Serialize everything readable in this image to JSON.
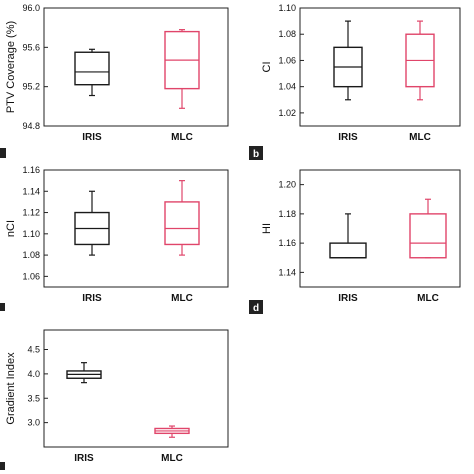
{
  "colors": {
    "iris": "#1a1a1a",
    "mlc": "#e0456a",
    "axis": "#222222",
    "label_box": "#222222",
    "label_text": "#ffffff"
  },
  "chart_data": [
    {
      "type": "box",
      "panel_label": "",
      "ylabel": "PTV Coverage (%)",
      "xlabel": "",
      "ylim": [
        94.8,
        96.0
      ],
      "yticks": [
        "94.8",
        "95.2",
        "95.6",
        "96.0"
      ],
      "ytick_values": [
        94.8,
        95.2,
        95.6,
        96.0
      ],
      "categories": [
        "IRIS",
        "MLC"
      ],
      "series": [
        {
          "name": "IRIS",
          "whisker_low": 95.11,
          "q1": 95.22,
          "median": 95.35,
          "q3": 95.55,
          "whisker_high": 95.58
        },
        {
          "name": "MLC",
          "whisker_low": 94.98,
          "q1": 95.18,
          "median": 95.47,
          "q3": 95.76,
          "whisker_high": 95.78
        }
      ]
    },
    {
      "type": "box",
      "panel_label": "b",
      "ylabel": "CI",
      "xlabel": "",
      "ylim": [
        1.01,
        1.1
      ],
      "yticks": [
        "1.02",
        "1.04",
        "1.06",
        "1.08",
        "1.10"
      ],
      "ytick_values": [
        1.02,
        1.04,
        1.06,
        1.08,
        1.1
      ],
      "categories": [
        "IRIS",
        "MLC"
      ],
      "series": [
        {
          "name": "IRIS",
          "whisker_low": 1.03,
          "q1": 1.04,
          "median": 1.055,
          "q3": 1.07,
          "whisker_high": 1.09
        },
        {
          "name": "MLC",
          "whisker_low": 1.03,
          "q1": 1.04,
          "median": 1.06,
          "q3": 1.08,
          "whisker_high": 1.09
        }
      ]
    },
    {
      "type": "box",
      "panel_label": "",
      "ylabel": "nCI",
      "xlabel": "",
      "ylim": [
        1.05,
        1.16
      ],
      "yticks": [
        "1.06",
        "1.08",
        "1.10",
        "1.12",
        "1.14",
        "1.16"
      ],
      "ytick_values": [
        1.06,
        1.08,
        1.1,
        1.12,
        1.14,
        1.16
      ],
      "categories": [
        "IRIS",
        "MLC"
      ],
      "series": [
        {
          "name": "IRIS",
          "whisker_low": 1.08,
          "q1": 1.09,
          "median": 1.105,
          "q3": 1.12,
          "whisker_high": 1.14
        },
        {
          "name": "MLC",
          "whisker_low": 1.08,
          "q1": 1.09,
          "median": 1.105,
          "q3": 1.13,
          "whisker_high": 1.15
        }
      ]
    },
    {
      "type": "box",
      "panel_label": "d",
      "ylabel": "HI",
      "xlabel": "",
      "ylim": [
        1.13,
        1.21
      ],
      "yticks": [
        "1.14",
        "1.16",
        "1.18",
        "1.20"
      ],
      "ytick_values": [
        1.14,
        1.16,
        1.18,
        1.2
      ],
      "categories": [
        "IRIS",
        "MLC"
      ],
      "series": [
        {
          "name": "IRIS",
          "whisker_low": 1.15,
          "q1": 1.15,
          "median": 1.15,
          "q3": 1.16,
          "whisker_high": 1.18
        },
        {
          "name": "MLC",
          "whisker_low": 1.15,
          "q1": 1.15,
          "median": 1.16,
          "q3": 1.18,
          "whisker_high": 1.19
        }
      ]
    },
    {
      "type": "box",
      "panel_label": "",
      "ylabel": "Gradient Index",
      "xlabel": "",
      "ylim": [
        2.5,
        4.9
      ],
      "yticks": [
        "3.0",
        "3.5",
        "4.0",
        "4.5"
      ],
      "ytick_values": [
        3.0,
        3.5,
        4.0,
        4.5
      ],
      "categories": [
        "IRIS",
        "MLC"
      ],
      "series": [
        {
          "name": "IRIS",
          "whisker_low": 3.82,
          "q1": 3.91,
          "median": 3.99,
          "q3": 4.06,
          "whisker_high": 4.23
        },
        {
          "name": "MLC",
          "whisker_low": 2.7,
          "q1": 2.78,
          "median": 2.83,
          "q3": 2.88,
          "whisker_high": 2.93
        }
      ]
    }
  ]
}
